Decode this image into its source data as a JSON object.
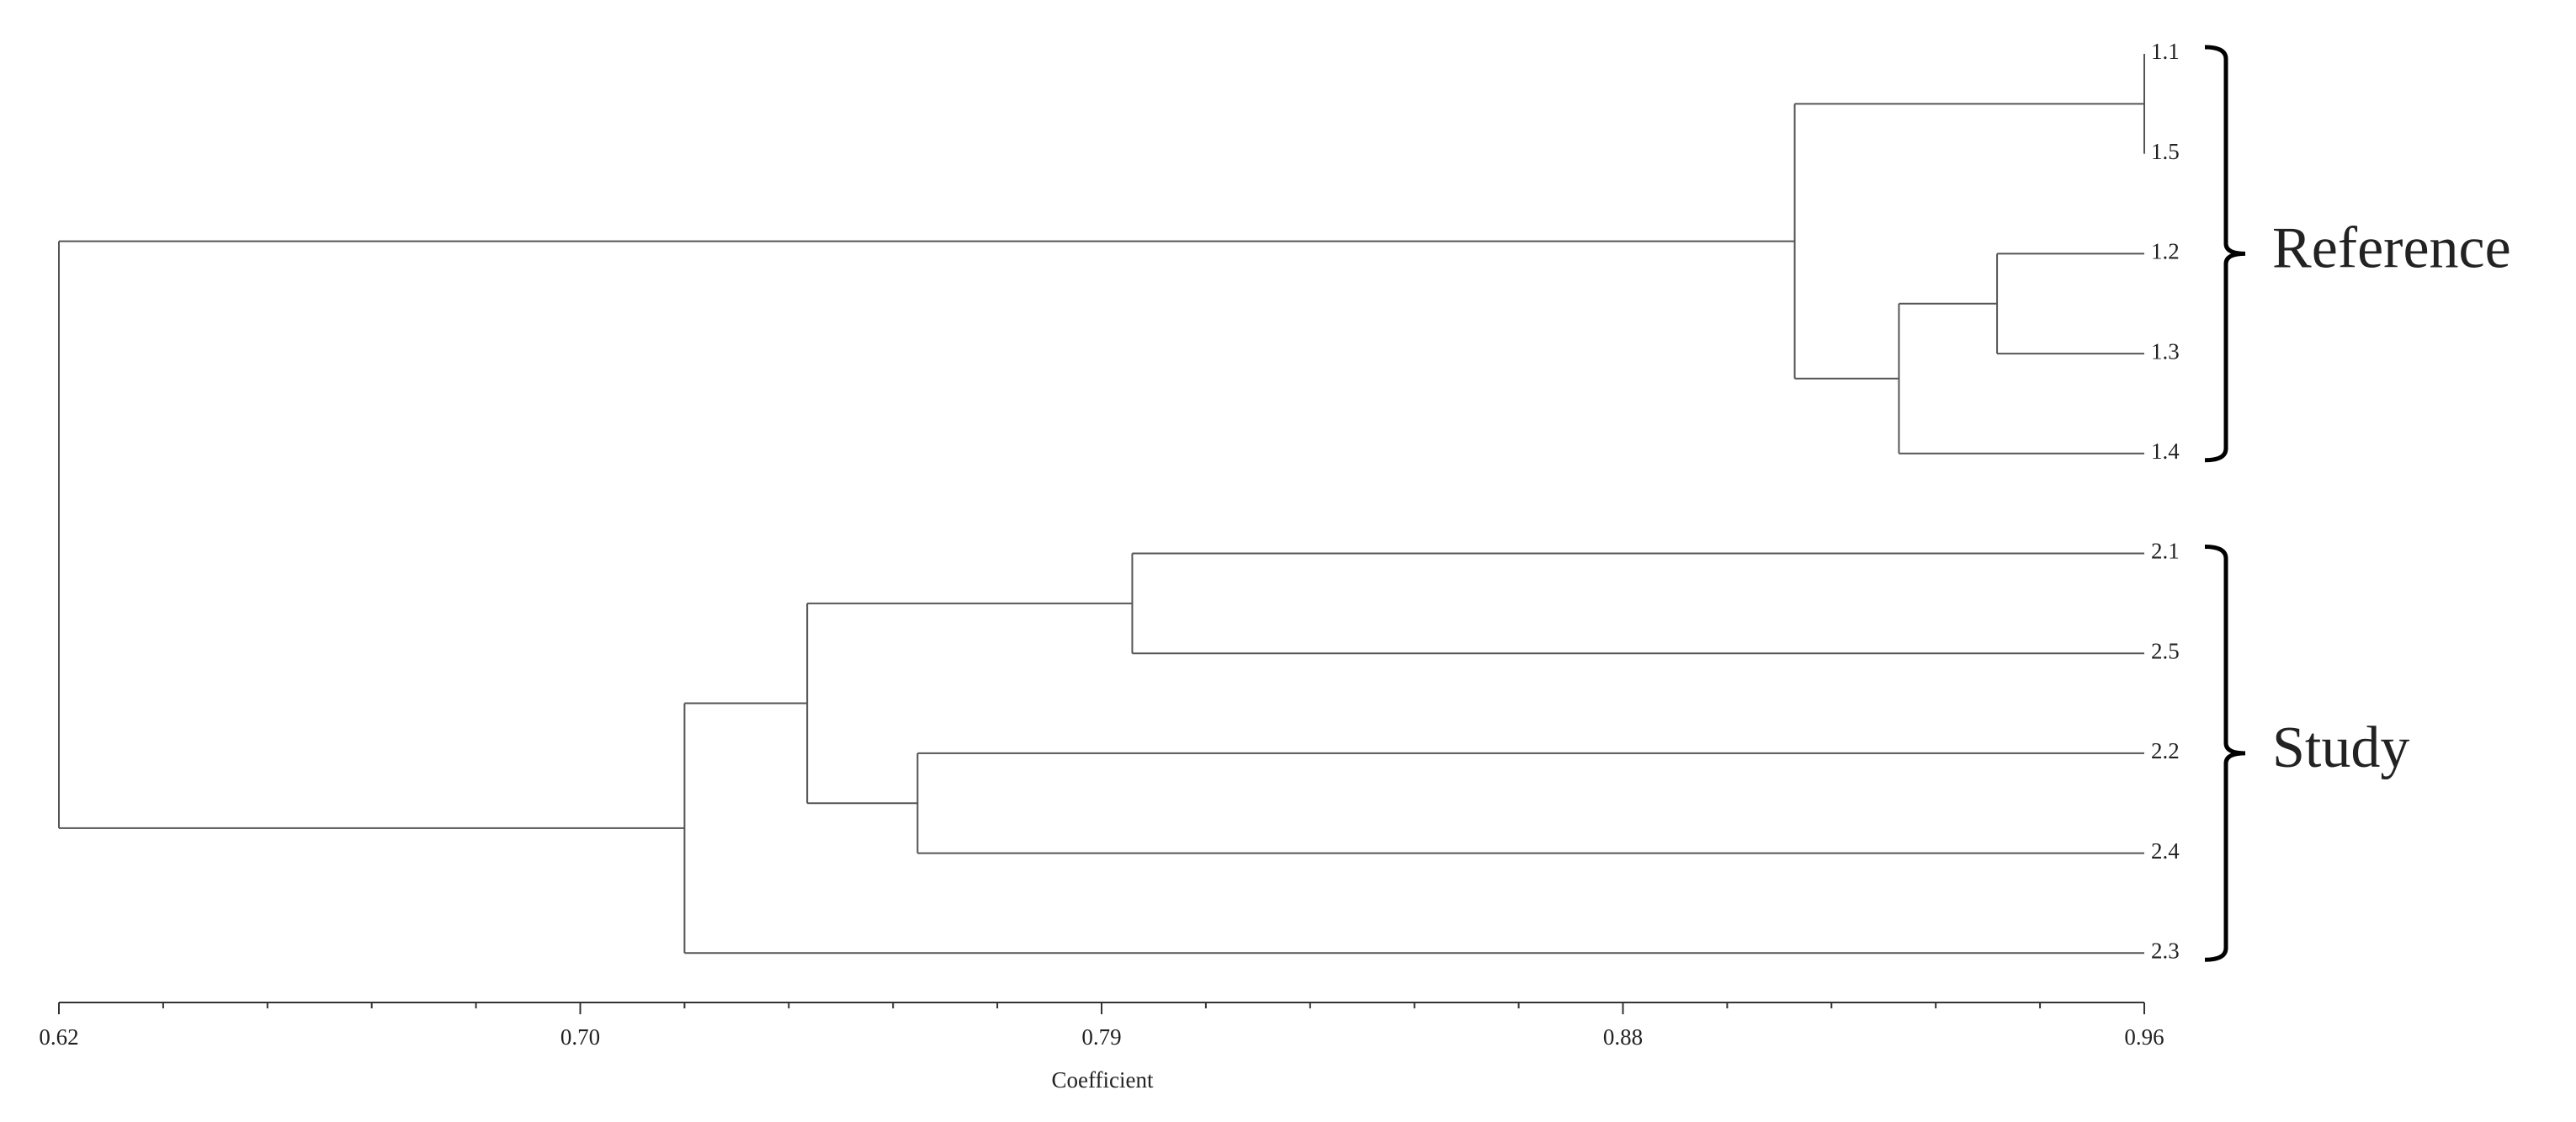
{
  "chart_data": {
    "type": "dendrogram",
    "xlabel": "Coefficient",
    "xlim": [
      0.62,
      0.96
    ],
    "xticks": [
      0.62,
      {
        "value": 0.705,
        "label": "0.70"
      },
      0.79,
      {
        "value": 0.875,
        "label": "0.88"
      },
      0.96
    ],
    "color": "#555555",
    "tree": {
      "height": 0.62,
      "children": [
        {
          "height": 0.903,
          "group": "Reference",
          "children": [
            {
              "height": 0.96,
              "children": [
                {
                  "label": "1.1"
                },
                {
                  "label": "1.5"
                }
              ]
            },
            {
              "height": 0.92,
              "children": [
                {
                  "height": 0.936,
                  "children": [
                    {
                      "label": "1.2"
                    },
                    {
                      "label": "1.3"
                    }
                  ]
                },
                {
                  "label": "1.4"
                }
              ]
            }
          ]
        },
        {
          "height": 0.722,
          "group": "Study",
          "children": [
            {
              "height": 0.742,
              "children": [
                {
                  "height": 0.795,
                  "children": [
                    {
                      "label": "2.1"
                    },
                    {
                      "label": "2.5"
                    }
                  ]
                },
                {
                  "height": 0.76,
                  "children": [
                    {
                      "label": "2.2"
                    },
                    {
                      "label": "2.4"
                    }
                  ]
                }
              ]
            },
            {
              "label": "2.3"
            }
          ]
        }
      ]
    }
  }
}
